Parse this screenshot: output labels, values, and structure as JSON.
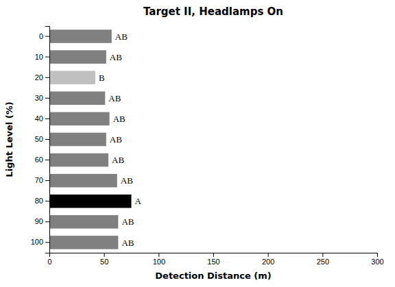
{
  "chart_data": {
    "type": "bar",
    "orientation": "horizontal",
    "title": "Target II, Headlamps On",
    "x_label": "Detection Distance (m)",
    "y_label": "Light Level (%)",
    "categories": [
      "0",
      "10",
      "20",
      "30",
      "40",
      "50",
      "60",
      "70",
      "80",
      "90",
      "100"
    ],
    "values": [
      57,
      52,
      42,
      51,
      55,
      52,
      54,
      62,
      75,
      63,
      63
    ],
    "colors": [
      "#808080",
      "#808080",
      "#c0c0c0",
      "#808080",
      "#808080",
      "#808080",
      "#808080",
      "#808080",
      "#000000",
      "#808080",
      "#808080"
    ],
    "annotations": [
      "AB",
      "AB",
      "B",
      "AB",
      "AB",
      "AB",
      "AB",
      "AB",
      "A",
      "AB",
      "AB"
    ],
    "xlim": [
      0,
      300
    ],
    "xticks": [
      0,
      50,
      100,
      150,
      200,
      250,
      300
    ],
    "grid": false
  }
}
